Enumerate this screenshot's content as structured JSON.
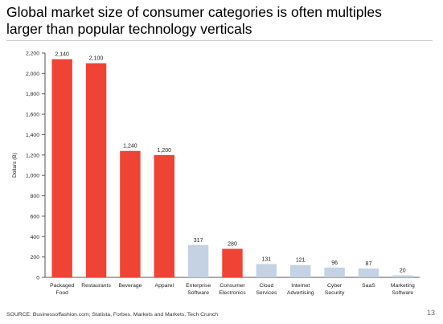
{
  "title": "Global market size of consumer categories is often multiples larger than popular technology verticals",
  "source": "SOURCE: Businessoffashion.com; Statista, Forbes. Markets and Markets, Tech Crunch",
  "page_number": "13",
  "colors": {
    "consumer": "#ef4336",
    "technology": "#c5d2e4",
    "axis": "#555555"
  },
  "chart_data": {
    "type": "bar",
    "ylabel": "Dollars (B)",
    "ylim": [
      0,
      2200
    ],
    "yticks": [
      0,
      200,
      400,
      600,
      800,
      1000,
      1200,
      1400,
      1600,
      1800,
      2000,
      2200
    ],
    "ytick_labels": [
      "0",
      "200",
      "400",
      "600",
      "800",
      "1,000",
      "1,200",
      "1,400",
      "1,600",
      "1,800",
      "2,000",
      "2,200"
    ],
    "bars": [
      {
        "label": [
          "Packaged",
          "Food"
        ],
        "value": 2140,
        "value_label": "2,140",
        "group": "consumer"
      },
      {
        "label": [
          "Restaurants"
        ],
        "value": 2100,
        "value_label": "2,100",
        "group": "consumer"
      },
      {
        "label": [
          "Beverage"
        ],
        "value": 1240,
        "value_label": "1,240",
        "group": "consumer"
      },
      {
        "label": [
          "Apparel"
        ],
        "value": 1200,
        "value_label": "1,200",
        "group": "consumer"
      },
      {
        "label": [
          "Enterprise",
          "Software"
        ],
        "value": 317,
        "value_label": "317",
        "group": "technology"
      },
      {
        "label": [
          "Consumer",
          "Electronics"
        ],
        "value": 280,
        "value_label": "280",
        "group": "consumer"
      },
      {
        "label": [
          "Cloud",
          "Services"
        ],
        "value": 131,
        "value_label": "131",
        "group": "technology"
      },
      {
        "label": [
          "Internet",
          "Advertising"
        ],
        "value": 121,
        "value_label": "121",
        "group": "technology"
      },
      {
        "label": [
          "Cyber",
          "Security"
        ],
        "value": 96,
        "value_label": "96",
        "group": "technology"
      },
      {
        "label": [
          "SaaS"
        ],
        "value": 87,
        "value_label": "87",
        "group": "technology"
      },
      {
        "label": [
          "Marketing",
          "Software"
        ],
        "value": 20,
        "value_label": "20",
        "group": "technology"
      }
    ]
  }
}
